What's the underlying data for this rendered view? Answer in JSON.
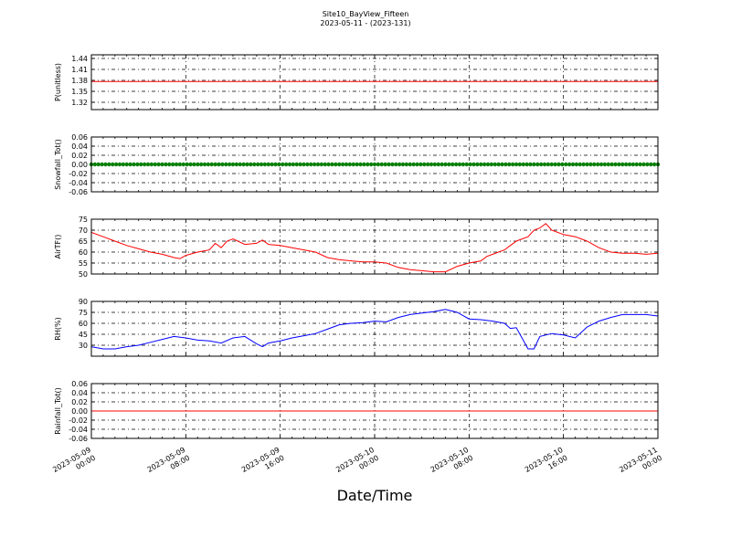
{
  "title_line1": "Site10_BayView_Fifteen",
  "title_line2": "2023-05-11 - (2023-131)",
  "xlabel": "Date/Time",
  "x_ticks": [
    "2023-05-09\n00:00",
    "2023-05-09\n08:00",
    "2023-05-09\n16:00",
    "2023-05-10\n00:00",
    "2023-05-10\n08:00",
    "2023-05-10\n16:00",
    "2023-05-11\n00:00"
  ],
  "chart_data": [
    {
      "type": "line",
      "ylabel": "P(unitless)",
      "ylim": [
        1.3,
        1.45
      ],
      "yticks": [
        1.32,
        1.35,
        1.38,
        1.41,
        1.44
      ],
      "ytick_labels": [
        "1.32",
        "1.35",
        "1.38",
        "1.41",
        "1.44"
      ],
      "grid": true,
      "color": "#ff0000",
      "x": [
        0,
        48
      ],
      "values": [
        1.377,
        1.377
      ]
    },
    {
      "type": "line",
      "ylabel": "Snowfall_Tot()",
      "ylim": [
        -0.06,
        0.06
      ],
      "yticks": [
        -0.06,
        -0.04,
        -0.02,
        0.0,
        0.02,
        0.04,
        0.06
      ],
      "ytick_labels": [
        "-0.06",
        "-0.04",
        "-0.02",
        "0.00",
        "0.02",
        "0.04",
        "0.06"
      ],
      "grid": true,
      "color": "#007f00",
      "marker": "dot",
      "x": [
        0,
        48
      ],
      "values": [
        0.0,
        0.0
      ]
    },
    {
      "type": "line",
      "ylabel": "AirTF()",
      "ylim": [
        50,
        75
      ],
      "yticks": [
        50,
        55,
        60,
        65,
        70,
        75
      ],
      "ytick_labels": [
        "50",
        "55",
        "60",
        "65",
        "70",
        "75"
      ],
      "grid": true,
      "color": "#ff0000",
      "x": [
        0,
        1,
        2,
        3,
        4,
        5,
        6,
        7,
        7.5,
        8,
        9,
        10,
        10.5,
        11,
        11.5,
        12,
        13,
        14,
        14.5,
        15,
        16,
        17,
        18,
        19,
        20,
        21,
        22,
        23,
        24,
        25,
        26,
        27,
        28,
        29,
        30,
        31,
        32,
        33,
        33.5,
        34,
        35,
        35.5,
        36,
        37,
        37.5,
        38,
        38.5,
        39,
        40,
        41,
        42,
        43,
        44,
        45,
        46,
        47,
        48
      ],
      "values": [
        69,
        67,
        65,
        63,
        61.5,
        60,
        59,
        57.5,
        57,
        58.5,
        60,
        61,
        64,
        62,
        65,
        66,
        63.5,
        64,
        65.5,
        63.5,
        63,
        62,
        61,
        60,
        57.5,
        56.5,
        56,
        55.5,
        55.5,
        55,
        53,
        52,
        51.5,
        51,
        51,
        53.5,
        55,
        56,
        58,
        59,
        61,
        63,
        65,
        67,
        70,
        71,
        73,
        70,
        68,
        67,
        65,
        62,
        60,
        59.5,
        59.5,
        59,
        59.5
      ]
    },
    {
      "type": "line",
      "ylabel": "RH(%)",
      "ylim": [
        15,
        90
      ],
      "yticks": [
        30,
        45,
        60,
        75,
        90
      ],
      "ytick_labels": [
        "30",
        "45",
        "60",
        "75",
        "90"
      ],
      "grid": true,
      "color": "#0000ff",
      "x": [
        0,
        1,
        2,
        3,
        4,
        5,
        6,
        7,
        8,
        9,
        10,
        11,
        12,
        13,
        14,
        14.5,
        15,
        16,
        17,
        18,
        19,
        20,
        21,
        22,
        23,
        24,
        25,
        26,
        27,
        28,
        29,
        30,
        31,
        32,
        33,
        34,
        35,
        35.5,
        36,
        37,
        37.5,
        38,
        39,
        40,
        41,
        42,
        43,
        44,
        45,
        46,
        47,
        48
      ],
      "values": [
        28,
        25,
        25,
        28,
        30,
        34,
        38,
        42,
        40,
        37,
        36,
        33,
        40,
        42,
        32,
        28,
        33,
        36,
        40,
        43,
        46,
        52,
        58,
        60,
        61,
        63,
        62,
        68,
        72,
        74,
        76,
        79,
        75,
        66,
        65,
        63,
        60,
        53,
        54,
        25,
        25,
        42,
        46,
        44,
        40,
        55,
        63,
        68,
        72,
        72,
        72,
        70
      ]
    },
    {
      "type": "line",
      "ylabel": "Rainfall_Tot()",
      "ylim": [
        -0.06,
        0.06
      ],
      "yticks": [
        -0.06,
        -0.04,
        -0.02,
        0.0,
        0.02,
        0.04,
        0.06
      ],
      "ytick_labels": [
        "-0.06",
        "-0.04",
        "-0.02",
        "0.00",
        "0.02",
        "0.04",
        "0.06"
      ],
      "grid": true,
      "color": "#ff0000",
      "x": [
        0,
        48
      ],
      "values": [
        0.0,
        0.0
      ]
    }
  ]
}
